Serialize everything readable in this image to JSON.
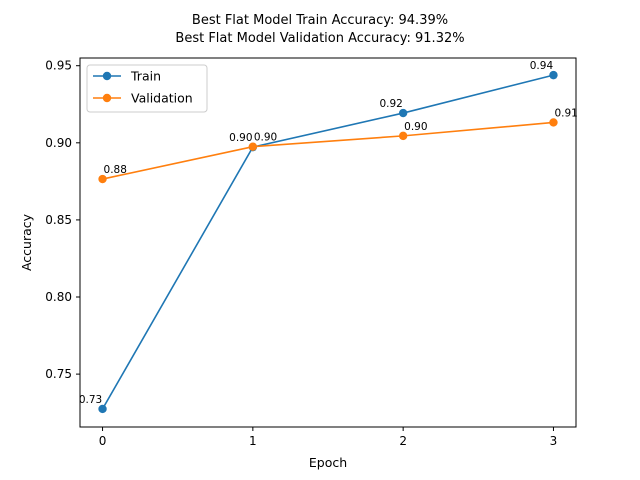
{
  "chart_data": {
    "type": "line",
    "title": "Best Flat Model Train Accuracy: 94.39%",
    "subtitle": "Best Flat Model Validation Accuracy: 91.32%",
    "xlabel": "Epoch",
    "ylabel": "Accuracy",
    "x": [
      0,
      1,
      2,
      3
    ],
    "xticks": [
      "0",
      "1",
      "2",
      "3"
    ],
    "yticks": [
      "0.75",
      "0.80",
      "0.85",
      "0.90",
      "0.95"
    ],
    "xlim": [
      -0.15,
      3.15
    ],
    "ylim": [
      0.7157,
      0.955
    ],
    "grid": false,
    "legend_position": "top-left",
    "series": [
      {
        "name": "Train",
        "color": "#1f77b4",
        "values": [
          0.7274,
          0.8972,
          0.9193,
          0.9439
        ],
        "labels": [
          "0.73",
          "0.90",
          "0.92",
          "0.94"
        ]
      },
      {
        "name": "Validation",
        "color": "#ff7f0e",
        "values": [
          0.8765,
          0.8975,
          0.9045,
          0.9132
        ],
        "labels": [
          "0.88",
          "0.90",
          "0.90",
          "0.91"
        ]
      }
    ]
  }
}
